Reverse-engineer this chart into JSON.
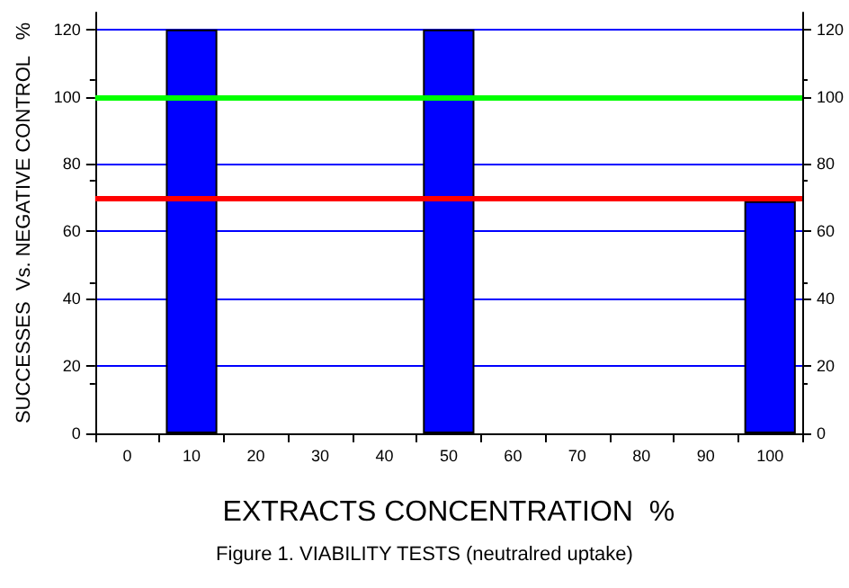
{
  "chart_data": {
    "type": "bar",
    "title": "Figure 1. VIABILITY TESTS (neutralred uptake)",
    "xlabel": "EXTRACTS CONCENTRATION  %",
    "ylabel": "SUCCESSES  Vs. NEGATIVE CONTROL   %",
    "categories": [
      "0",
      "10",
      "20",
      "30",
      "40",
      "50",
      "60",
      "70",
      "80",
      "90",
      "100"
    ],
    "values": [
      null,
      120,
      null,
      null,
      null,
      120,
      null,
      null,
      null,
      null,
      69
    ],
    "color": "#0000ff",
    "ylim": [
      0,
      125
    ],
    "yticks": [
      0,
      20,
      40,
      60,
      80,
      100,
      120
    ],
    "y2lim": [
      0,
      125
    ],
    "y2ticks": [
      0,
      20,
      40,
      60,
      80,
      100,
      120
    ],
    "grid": "y",
    "ref_lines": [
      {
        "axis": "y",
        "value": 100,
        "color": "#00ff00"
      },
      {
        "axis": "y",
        "value": 70,
        "color": "#ff0000"
      }
    ]
  }
}
